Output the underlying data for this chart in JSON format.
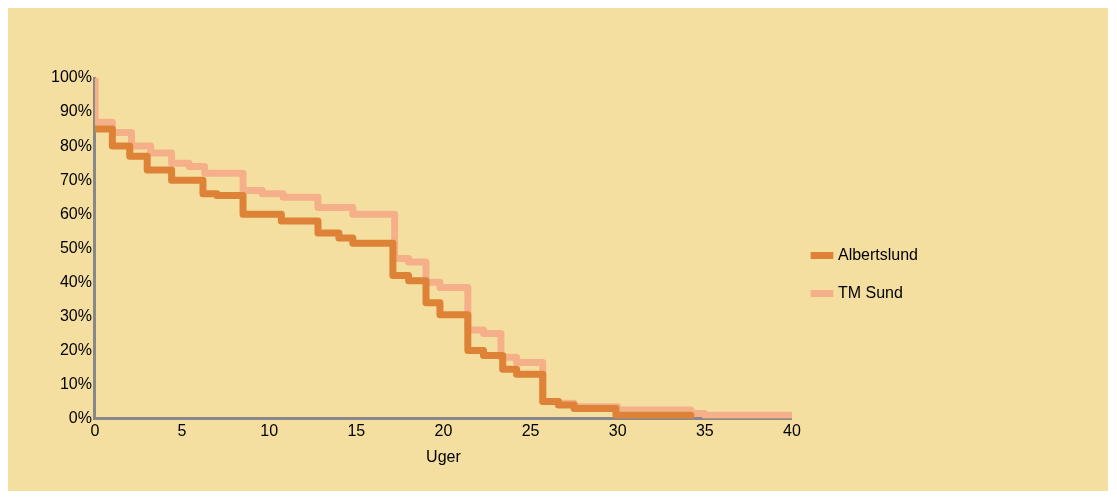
{
  "chart_data": {
    "type": "step",
    "xlabel": "Uger",
    "xlim": [
      0,
      40
    ],
    "xticks": [
      0,
      5,
      10,
      15,
      20,
      25,
      30,
      35,
      40
    ],
    "ylim": [
      0,
      100
    ],
    "yticks": [
      {
        "value": 0,
        "label": "0%"
      },
      {
        "value": 10,
        "label": "10%"
      },
      {
        "value": 20,
        "label": "20%"
      },
      {
        "value": 30,
        "label": "30%"
      },
      {
        "value": 40,
        "label": "40%"
      },
      {
        "value": 50,
        "label": "50%"
      },
      {
        "value": 60,
        "label": "60%"
      },
      {
        "value": 70,
        "label": "70%"
      },
      {
        "value": 80,
        "label": "80%"
      },
      {
        "value": 90,
        "label": "90%"
      },
      {
        "value": 100,
        "label": "100%"
      }
    ],
    "grid": false,
    "legend": "right",
    "marker": "none",
    "line_style": "solid",
    "series": [
      {
        "name": "Albertslund",
        "color": "#dd8236",
        "x": [
          0,
          1,
          2,
          3,
          4.4,
          6.2,
          7,
          8.5,
          10.7,
          12.8,
          14,
          14.8,
          17.1,
          18,
          19,
          19.8,
          21.4,
          22.3,
          23.4,
          24.2,
          25.7,
          26.6,
          27.5,
          29.9,
          34.2,
          34.4
        ],
        "values": [
          85,
          80,
          77,
          73,
          70,
          66,
          65.5,
          60,
          58,
          54.5,
          53,
          51.5,
          42,
          40.5,
          34,
          30.5,
          20,
          18.5,
          14.5,
          13,
          5,
          4,
          3,
          1,
          0,
          0
        ]
      },
      {
        "name": "TM Sund",
        "color": "#f5b08a",
        "x": [
          0,
          0.01,
          1,
          2.1,
          3.2,
          4.4,
          5.4,
          6.3,
          8.5,
          9.6,
          10.8,
          12.8,
          14.8,
          17.2,
          18,
          19,
          19.8,
          21.4,
          22.3,
          23.3,
          24.2,
          25.7,
          26.6,
          27.5,
          30,
          34.2,
          35,
          40
        ],
        "values": [
          100,
          87,
          84,
          80,
          78,
          75,
          74,
          72,
          67,
          66,
          65,
          62,
          60,
          47,
          46,
          40,
          38.5,
          26,
          25,
          18,
          16.5,
          5,
          4.5,
          3.5,
          2.5,
          1.5,
          1,
          0.5
        ]
      }
    ]
  }
}
